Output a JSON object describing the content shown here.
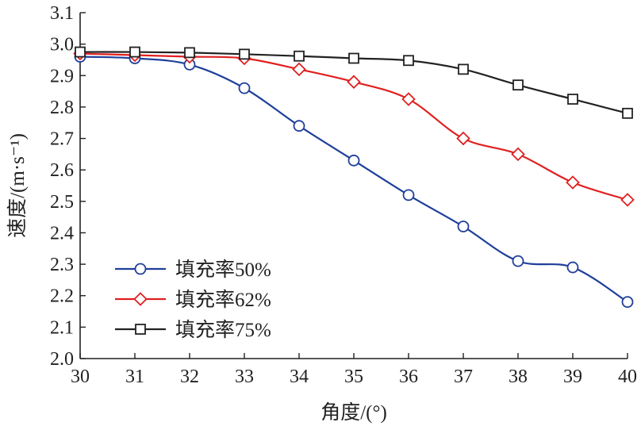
{
  "chart_data": {
    "type": "line",
    "xlabel": "角度/(°)",
    "ylabel": "速度/(m·s⁻¹)",
    "xlim": [
      30,
      40
    ],
    "ylim": [
      2.0,
      3.1
    ],
    "x_ticks": [
      "30",
      "31",
      "32",
      "33",
      "34",
      "35",
      "36",
      "37",
      "38",
      "39",
      "40"
    ],
    "y_ticks": [
      "2.0",
      "2.1",
      "2.2",
      "2.3",
      "2.4",
      "2.5",
      "2.6",
      "2.7",
      "2.8",
      "2.9",
      "3.0",
      "3.1"
    ],
    "grid": false,
    "legend_position": "bottom-left",
    "x": [
      30,
      31,
      32,
      33,
      34,
      35,
      36,
      37,
      38,
      39,
      40
    ],
    "series": [
      {
        "name": "填充率50%",
        "color": "#1f3f9a",
        "marker": "circle",
        "values": [
          2.96,
          2.955,
          2.935,
          2.86,
          2.74,
          2.63,
          2.52,
          2.42,
          2.31,
          2.29,
          2.18
        ]
      },
      {
        "name": "填充率62%",
        "color": "#e02020",
        "marker": "diamond",
        "values": [
          2.97,
          2.965,
          2.96,
          2.955,
          2.92,
          2.88,
          2.825,
          2.7,
          2.65,
          2.56,
          2.505
        ]
      },
      {
        "name": "填充率75%",
        "color": "#222222",
        "marker": "square",
        "values": [
          2.975,
          2.975,
          2.973,
          2.968,
          2.962,
          2.955,
          2.948,
          2.92,
          2.87,
          2.825,
          2.78
        ]
      }
    ]
  }
}
